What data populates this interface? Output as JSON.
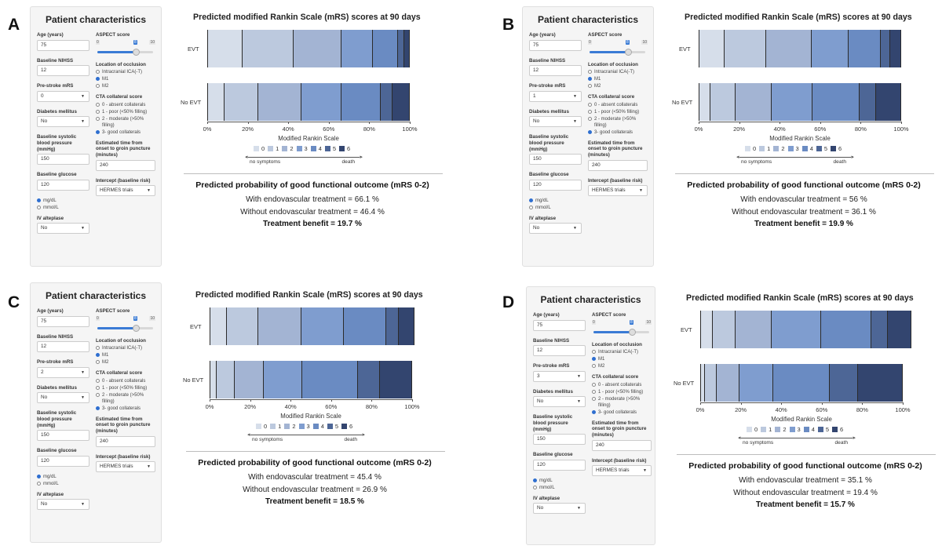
{
  "legend_colors": [
    "#d6deea",
    "#bcc9de",
    "#a3b4d3",
    "#7f9dcf",
    "#6a8bc2",
    "#4d6696",
    "#33456f"
  ],
  "panels": [
    {
      "letter": "A",
      "sidebar": {
        "title": "Patient characteristics",
        "age": {
          "label": "Age (years)",
          "value": "75"
        },
        "nihss": {
          "label": "Baseline NIHSS",
          "value": "12"
        },
        "prestroke": {
          "label": "Pre-stroke mRS",
          "value": "0"
        },
        "diabetes": {
          "label": "Diabetes mellitus",
          "value": "No"
        },
        "sbp": {
          "label": "Baseline systolic blood pressure (mmHg)",
          "value": "150"
        },
        "glucose": {
          "label": "Baseline glucose",
          "value": "120"
        },
        "glucose_units": [
          {
            "label": "mg/dL",
            "selected": true
          },
          {
            "label": "mmol/L",
            "selected": false
          }
        ],
        "alteplase": {
          "label": "IV alteplase",
          "value": "No"
        },
        "aspect": {
          "label": "ASPECT score",
          "min": "0",
          "max": "10",
          "value": "8"
        },
        "occlusion": {
          "label": "Location of occlusion",
          "options": [
            {
              "label": "Intracranial ICA(-T)",
              "selected": false
            },
            {
              "label": "M1",
              "selected": true
            },
            {
              "label": "M2",
              "selected": false
            }
          ]
        },
        "collateral": {
          "label": "CTA collateral score",
          "options": [
            {
              "label": "0 - absent collaterals",
              "selected": false
            },
            {
              "label": "1 - poor (<50% filling)",
              "selected": false
            },
            {
              "label": "2 - moderate (>50% filling)",
              "selected": false
            },
            {
              "label": "3- good collaterals",
              "selected": true
            }
          ]
        },
        "time": {
          "label": "Estimated time from onset to groin puncture (minutes)",
          "value": "240"
        },
        "intercept": {
          "label": "Intercept (baseline risk)",
          "value": "HERMES trials"
        }
      },
      "result": {
        "title": "Predicted probability of good functional outcome (mRS 0-2)",
        "with": "With endovascular treatment = 66.1 %",
        "without": "Without endovascular treatment = 46.4 %",
        "benefit": "Treatment benefit = 19.7 %"
      }
    },
    {
      "letter": "B",
      "sidebar": {
        "title": "Patient characteristics",
        "age": {
          "label": "Age (years)",
          "value": "75"
        },
        "nihss": {
          "label": "Baseline NIHSS",
          "value": "12"
        },
        "prestroke": {
          "label": "Pre-stroke mRS",
          "value": "1"
        },
        "diabetes": {
          "label": "Diabetes mellitus",
          "value": "No"
        },
        "sbp": {
          "label": "Baseline systolic blood pressure (mmHg)",
          "value": "150"
        },
        "glucose": {
          "label": "Baseline glucose",
          "value": "120"
        },
        "glucose_units": [
          {
            "label": "mg/dL",
            "selected": true
          },
          {
            "label": "mmol/L",
            "selected": false
          }
        ],
        "alteplase": {
          "label": "IV alteplase",
          "value": "No"
        },
        "aspect": {
          "label": "ASPECT score",
          "min": "0",
          "max": "10",
          "value": "8"
        },
        "occlusion": {
          "label": "Location of occlusion",
          "options": [
            {
              "label": "Intracranial ICA(-T)",
              "selected": false
            },
            {
              "label": "M1",
              "selected": true
            },
            {
              "label": "M2",
              "selected": false
            }
          ]
        },
        "collateral": {
          "label": "CTA collateral score",
          "options": [
            {
              "label": "0 - absent collaterals",
              "selected": false
            },
            {
              "label": "1 - poor (<50% filling)",
              "selected": false
            },
            {
              "label": "2 - moderate (>50% filling)",
              "selected": false
            },
            {
              "label": "3- good collaterals",
              "selected": true
            }
          ]
        },
        "time": {
          "label": "Estimated time from onset to groin puncture (minutes)",
          "value": "240"
        },
        "intercept": {
          "label": "Intercept (baseline risk)",
          "value": "HERMES trials"
        }
      },
      "result": {
        "title": "Predicted probability of good functional outcome (mRS 0-2)",
        "with": "With endovascular treatment = 56 %",
        "without": "Without endovascular treatment = 36.1 %",
        "benefit": "Treatment benefit = 19.9 %"
      }
    },
    {
      "letter": "C",
      "sidebar": {
        "title": "Patient characteristics",
        "age": {
          "label": "Age (years)",
          "value": "75"
        },
        "nihss": {
          "label": "Baseline NIHSS",
          "value": "12"
        },
        "prestroke": {
          "label": "Pre-stroke mRS",
          "value": "2"
        },
        "diabetes": {
          "label": "Diabetes mellitus",
          "value": "No"
        },
        "sbp": {
          "label": "Baseline systolic blood pressure (mmHg)",
          "value": "150"
        },
        "glucose": {
          "label": "Baseline glucose",
          "value": "120"
        },
        "glucose_units": [
          {
            "label": "mg/dL",
            "selected": true
          },
          {
            "label": "mmol/L",
            "selected": false
          }
        ],
        "alteplase": {
          "label": "IV alteplase",
          "value": "No"
        },
        "aspect": {
          "label": "ASPECT score",
          "min": "0",
          "max": "10",
          "value": "8"
        },
        "occlusion": {
          "label": "Location of occlusion",
          "options": [
            {
              "label": "Intracranial ICA(-T)",
              "selected": false
            },
            {
              "label": "M1",
              "selected": true
            },
            {
              "label": "M2",
              "selected": false
            }
          ]
        },
        "collateral": {
          "label": "CTA collateral score",
          "options": [
            {
              "label": "0 - absent collaterals",
              "selected": false
            },
            {
              "label": "1 - poor (<50% filling)",
              "selected": false
            },
            {
              "label": "2 - moderate (>50% filling)",
              "selected": false
            },
            {
              "label": "3- good collaterals",
              "selected": true
            }
          ]
        },
        "time": {
          "label": "Estimated time from onset to groin puncture (minutes)",
          "value": "240"
        },
        "intercept": {
          "label": "Intercept (baseline risk)",
          "value": "HERMES trials"
        }
      },
      "result": {
        "title": "Predicted probability of good functional outcome (mRS 0-2)",
        "with": "With endovascular treatment = 45.4 %",
        "without": "Without endovascular treatment = 26.9 %",
        "benefit": "Treatment benefit = 18.5 %"
      }
    },
    {
      "letter": "D",
      "sidebar": {
        "title": "Patient characteristics",
        "age": {
          "label": "Age (years)",
          "value": "75"
        },
        "nihss": {
          "label": "Baseline NIHSS",
          "value": "12"
        },
        "prestroke": {
          "label": "Pre-stroke mRS",
          "value": "3"
        },
        "diabetes": {
          "label": "Diabetes mellitus",
          "value": "No"
        },
        "sbp": {
          "label": "Baseline systolic blood pressure (mmHg)",
          "value": "150"
        },
        "glucose": {
          "label": "Baseline glucose",
          "value": "120"
        },
        "glucose_units": [
          {
            "label": "mg/dL",
            "selected": true
          },
          {
            "label": "mmol/L",
            "selected": false
          }
        ],
        "alteplase": {
          "label": "IV alteplase",
          "value": "No"
        },
        "aspect": {
          "label": "ASPECT score",
          "min": "0",
          "max": "10",
          "value": "8"
        },
        "occlusion": {
          "label": "Location of occlusion",
          "options": [
            {
              "label": "Intracranial ICA(-T)",
              "selected": false
            },
            {
              "label": "M1",
              "selected": true
            },
            {
              "label": "M2",
              "selected": false
            }
          ]
        },
        "collateral": {
          "label": "CTA collateral score",
          "options": [
            {
              "label": "0 - absent collaterals",
              "selected": false
            },
            {
              "label": "1 - poor (<50% filling)",
              "selected": false
            },
            {
              "label": "2 - moderate (>50% filling)",
              "selected": false
            },
            {
              "label": "3- good collaterals",
              "selected": true
            }
          ]
        },
        "time": {
          "label": "Estimated time from onset to groin puncture (minutes)",
          "value": "240"
        },
        "intercept": {
          "label": "Intercept (baseline risk)",
          "value": "HERMES trials"
        }
      },
      "result": {
        "title": "Predicted probability of good functional outcome (mRS 0-2)",
        "with": "With endovascular treatment = 35.1 %",
        "without": "Without endovascular treatment = 19.4 %",
        "benefit": "Treatment benefit = 15.7 %"
      }
    }
  ],
  "chart_data": [
    {
      "panel": "A",
      "type": "bar",
      "orientation": "horizontal",
      "stacked": true,
      "title": "Predicted modified Rankin Scale (mRS) scores at 90 days",
      "categories": [
        "EVT",
        "No EVT"
      ],
      "segment_labels": [
        "0",
        "1",
        "2",
        "3",
        "4",
        "5",
        "6"
      ],
      "values": {
        "EVT": [
          17.4,
          25.3,
          23.4,
          15.6,
          12.5,
          3.0,
          2.8
        ],
        "No EVT": [
          8.7,
          16.6,
          21.1,
          19.7,
          19.7,
          5.8,
          8.4
        ]
      },
      "xlabel": "Modified Rankin Scale",
      "xlim": [
        0,
        100
      ],
      "x_ticks": [
        "0%",
        "20%",
        "40%",
        "60%",
        "80%",
        "100%"
      ],
      "legend": [
        "0",
        "1",
        "2",
        "3",
        "4",
        "5",
        "6"
      ],
      "legend_arrow_left": "no symptoms",
      "legend_arrow_right": "death"
    },
    {
      "panel": "B",
      "type": "bar",
      "orientation": "horizontal",
      "stacked": true,
      "title": "Predicted modified Rankin Scale (mRS) scores at 90 days",
      "categories": [
        "EVT",
        "No EVT"
      ],
      "segment_labels": [
        "0",
        "1",
        "2",
        "3",
        "4",
        "5",
        "6"
      ],
      "values": {
        "EVT": [
          12.8,
          20.7,
          22.5,
          18.0,
          16.1,
          4.3,
          5.6
        ],
        "No EVT": [
          6.0,
          12.4,
          17.7,
          20.2,
          23.2,
          8.0,
          12.5
        ]
      },
      "xlabel": "Modified Rankin Scale",
      "xlim": [
        0,
        100
      ],
      "x_ticks": [
        "0%",
        "20%",
        "40%",
        "60%",
        "80%",
        "100%"
      ],
      "legend": [
        "0",
        "1",
        "2",
        "3",
        "4",
        "5",
        "6"
      ],
      "legend_arrow_left": "no symptoms",
      "legend_arrow_right": "death"
    },
    {
      "panel": "C",
      "type": "bar",
      "orientation": "horizontal",
      "stacked": true,
      "title": "Predicted modified Rankin Scale (mRS) scores at 90 days",
      "categories": [
        "EVT",
        "No EVT"
      ],
      "segment_labels": [
        "0",
        "1",
        "2",
        "3",
        "4",
        "5",
        "6"
      ],
      "values": {
        "EVT": [
          8.7,
          15.2,
          21.5,
          21.0,
          20.8,
          6.1,
          7.7
        ],
        "No EVT": [
          3.6,
          8.8,
          14.5,
          18.9,
          27.4,
          10.8,
          16.0
        ]
      },
      "xlabel": "Modified Rankin Scale",
      "xlim": [
        0,
        100
      ],
      "x_ticks": [
        "0%",
        "20%",
        "40%",
        "60%",
        "80%",
        "100%"
      ],
      "legend": [
        "0",
        "1",
        "2",
        "3",
        "4",
        "5",
        "6"
      ],
      "legend_arrow_left": "no symptoms",
      "legend_arrow_right": "death"
    },
    {
      "panel": "D",
      "type": "bar",
      "orientation": "horizontal",
      "stacked": true,
      "title": "Predicted modified Rankin Scale (mRS) scores at 90 days",
      "categories": [
        "EVT",
        "No EVT"
      ],
      "segment_labels": [
        "0",
        "1",
        "2",
        "3",
        "4",
        "5",
        "6"
      ],
      "values": {
        "EVT": [
          6.1,
          11.5,
          17.5,
          24.7,
          24.6,
          8.4,
          11.6
        ],
        "No EVT": [
          2.3,
          5.8,
          11.3,
          16.7,
          28.0,
          13.7,
          22.2
        ]
      },
      "xlabel": "Modified Rankin Scale",
      "xlim": [
        0,
        100
      ],
      "x_ticks": [
        "0%",
        "20%",
        "40%",
        "60%",
        "80%",
        "100%"
      ],
      "legend": [
        "0",
        "1",
        "2",
        "3",
        "4",
        "5",
        "6"
      ],
      "legend_arrow_left": "no symptoms",
      "legend_arrow_right": "death"
    }
  ]
}
